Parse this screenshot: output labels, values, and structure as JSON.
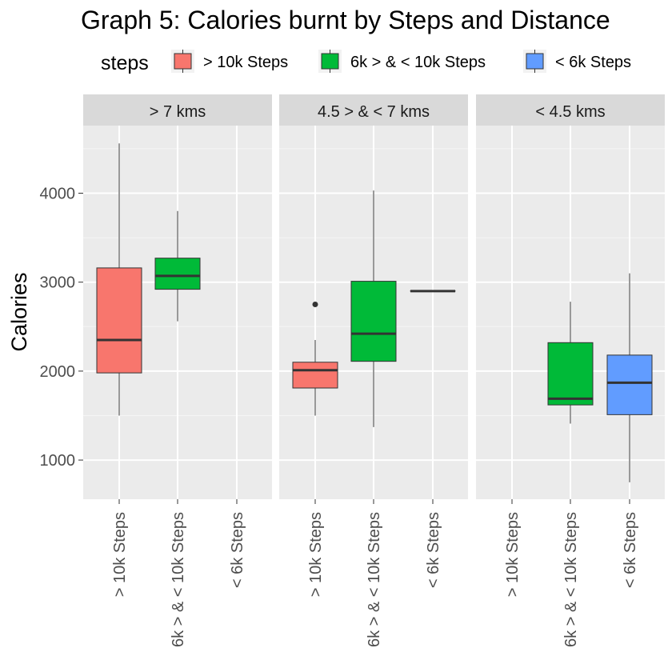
{
  "chart_data": {
    "type": "boxplot",
    "title": "Graph 5: Calories burnt by Steps and Distance",
    "ylabel": "Calories",
    "xlabel": "",
    "ylim": [
      560,
      4760
    ],
    "y_ticks": [
      1000,
      2000,
      3000,
      4000
    ],
    "legend": {
      "title": "steps",
      "placement": "top",
      "entries": [
        {
          "label": "> 10k Steps",
          "color": "#F8766D"
        },
        {
          "label": "6k > & < 10k Steps",
          "color": "#00BA38"
        },
        {
          "label": "< 6k Steps",
          "color": "#619CFF"
        }
      ]
    },
    "categories": [
      "> 10k Steps",
      "6k > & < 10k Steps",
      "< 6k Steps"
    ],
    "facets": [
      {
        "label": "> 7 kms",
        "boxes": [
          {
            "category": "> 10k Steps",
            "min": 1500,
            "q1": 1980,
            "median": 2350,
            "q3": 3160,
            "max": 4560,
            "outliers": []
          },
          {
            "category": "6k > & < 10k Steps",
            "min": 2560,
            "q1": 2920,
            "median": 3070,
            "q3": 3270,
            "max": 3800,
            "outliers": []
          }
        ]
      },
      {
        "label": "4.5 > & < 7 kms",
        "boxes": [
          {
            "category": "> 10k Steps",
            "min": 1500,
            "q1": 1810,
            "median": 2010,
            "q3": 2100,
            "max": 2350,
            "outliers": [
              2750
            ]
          },
          {
            "category": "6k > & < 10k Steps",
            "min": 1370,
            "q1": 2110,
            "median": 2420,
            "q3": 3010,
            "max": 4030,
            "outliers": []
          },
          {
            "category": "< 6k Steps",
            "min": 2900,
            "q1": 2900,
            "median": 2900,
            "q3": 2900,
            "max": 2900,
            "outliers": []
          }
        ]
      },
      {
        "label": "< 4.5 kms",
        "boxes": [
          {
            "category": "6k > & < 10k Steps",
            "min": 1410,
            "q1": 1620,
            "median": 1690,
            "q3": 2320,
            "max": 2780,
            "outliers": []
          },
          {
            "category": "< 6k Steps",
            "min": 750,
            "q1": 1510,
            "median": 1870,
            "q3": 2180,
            "max": 3100,
            "outliers": []
          }
        ]
      }
    ],
    "grid": true,
    "panel_background": "#EBEBEB",
    "strip_background": "#D9D9D9"
  }
}
